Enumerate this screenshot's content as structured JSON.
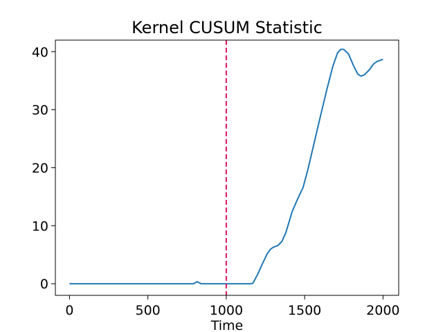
{
  "chart_data": {
    "type": "line",
    "title": "Kernel CUSUM Statistic",
    "xlabel": "Time",
    "ylabel": "",
    "xlim": [
      -90,
      2100
    ],
    "ylim": [
      -2,
      42
    ],
    "x_ticks": [
      0,
      500,
      1000,
      1500,
      2000
    ],
    "y_ticks": [
      0,
      10,
      20,
      30,
      40
    ],
    "grid": false,
    "legend": "none",
    "series": [
      {
        "color": "#1f77b4",
        "points": [
          [
            0,
            0
          ],
          [
            100,
            0
          ],
          [
            200,
            0
          ],
          [
            300,
            0
          ],
          [
            400,
            0
          ],
          [
            500,
            0
          ],
          [
            600,
            0
          ],
          [
            700,
            0
          ],
          [
            790,
            0
          ],
          [
            805,
            0.2
          ],
          [
            815,
            0.35
          ],
          [
            825,
            0.2
          ],
          [
            840,
            0
          ],
          [
            900,
            0
          ],
          [
            1000,
            0
          ],
          [
            1100,
            0
          ],
          [
            1160,
            0
          ],
          [
            1170,
            0.1
          ],
          [
            1200,
            1.6
          ],
          [
            1230,
            3.4
          ],
          [
            1260,
            5.1
          ],
          [
            1280,
            5.9
          ],
          [
            1300,
            6.3
          ],
          [
            1330,
            6.6
          ],
          [
            1355,
            7.3
          ],
          [
            1380,
            8.8
          ],
          [
            1400,
            10.6
          ],
          [
            1420,
            12.4
          ],
          [
            1450,
            14.3
          ],
          [
            1490,
            16.6
          ],
          [
            1520,
            19.6
          ],
          [
            1560,
            24.2
          ],
          [
            1600,
            28.8
          ],
          [
            1640,
            33.3
          ],
          [
            1680,
            37.5
          ],
          [
            1710,
            39.8
          ],
          [
            1730,
            40.4
          ],
          [
            1750,
            40.4
          ],
          [
            1780,
            39.6
          ],
          [
            1810,
            37.7
          ],
          [
            1840,
            36.1
          ],
          [
            1860,
            35.8
          ],
          [
            1880,
            36.0
          ],
          [
            1910,
            36.8
          ],
          [
            1940,
            37.9
          ],
          [
            1960,
            38.3
          ],
          [
            2000,
            38.7
          ]
        ]
      }
    ],
    "annotations": [
      {
        "type": "vertical-line",
        "x": 1000,
        "style": "dashed",
        "color": "#e0115f"
      }
    ]
  }
}
